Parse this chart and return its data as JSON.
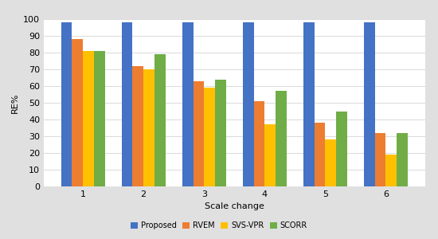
{
  "categories": [
    1,
    2,
    3,
    4,
    5,
    6
  ],
  "series": {
    "Proposed": [
      98,
      98,
      98,
      98,
      98,
      98
    ],
    "RVEM": [
      88,
      72,
      63,
      51,
      38,
      32
    ],
    "SVS-VPR": [
      81,
      70,
      59,
      37,
      28,
      19
    ],
    "SCORR": [
      81,
      79,
      64,
      57,
      45,
      32
    ]
  },
  "colors": {
    "Proposed": "#4472C4",
    "RVEM": "#ED7D31",
    "SVS-VPR": "#FFC000",
    "SCORR": "#70AD47"
  },
  "ylabel": "RE%",
  "xlabel": "Scale change",
  "ylim": [
    0,
    100
  ],
  "yticks": [
    0,
    10,
    20,
    30,
    40,
    50,
    60,
    70,
    80,
    90,
    100
  ],
  "background_color": "#e0e0e0",
  "plot_background": "#ffffff",
  "legend_labels": [
    "Proposed",
    "RVEM",
    "SVS-VPR",
    "SCORR"
  ],
  "bar_width": 0.18,
  "title_fontsize": 8,
  "axis_fontsize": 8,
  "tick_fontsize": 8,
  "legend_fontsize": 7
}
